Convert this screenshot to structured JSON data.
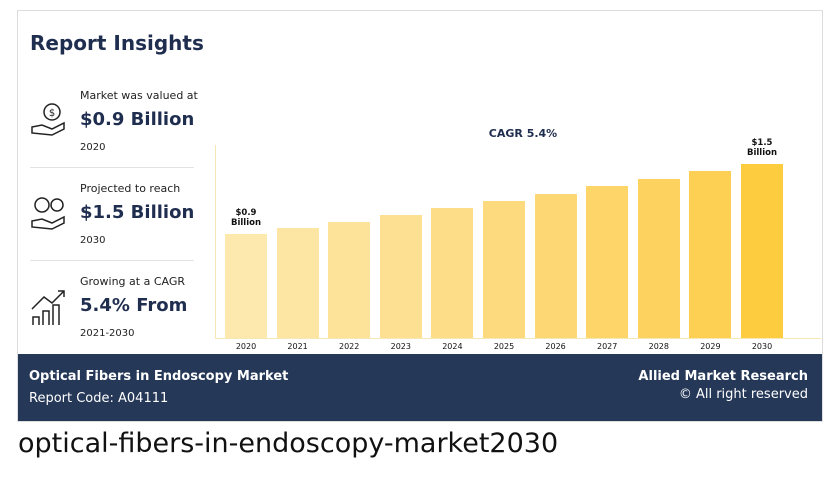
{
  "header": {
    "title": "Report Insights"
  },
  "stats": [
    {
      "label": "Market was valued at",
      "value": "$0.9 Billion",
      "year": "2020"
    },
    {
      "label": "Projected to reach",
      "value": "$1.5 Billion",
      "year": "2030"
    },
    {
      "label": "Growing at a CAGR",
      "value": "5.4% From",
      "year": "2021-2030"
    }
  ],
  "chart_data": {
    "type": "bar",
    "annotation": "CAGR 5.4%",
    "categories": [
      "2020",
      "2021",
      "2022",
      "2023",
      "2024",
      "2025",
      "2026",
      "2027",
      "2028",
      "2029",
      "2030"
    ],
    "values": [
      0.9,
      0.95,
      1.0,
      1.06,
      1.12,
      1.18,
      1.24,
      1.31,
      1.37,
      1.44,
      1.5
    ],
    "value_labels": [
      "$0.9 Billion",
      null,
      null,
      null,
      null,
      null,
      null,
      null,
      null,
      null,
      "$1.5 Billion"
    ],
    "colors": [
      "#fde9ad",
      "#fde6a3",
      "#fde39a",
      "#fde091",
      "#fddd87",
      "#fdda7d",
      "#fdd773",
      "#fdd569",
      "#fdd25f",
      "#fdcf52",
      "#fdcc3f"
    ]
  },
  "footer": {
    "market": "Optical Fibers in Endoscopy Market",
    "report_code": "Report Code: A04111",
    "company": "Allied Market Research",
    "rights": "© All right reserved"
  },
  "caption": "optical-fibers-in-endoscopy-market2030"
}
